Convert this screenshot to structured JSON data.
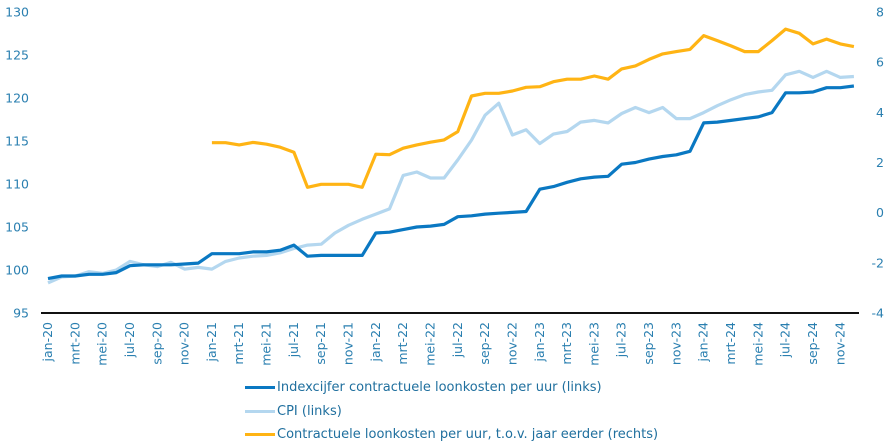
{
  "chart_data": {
    "type": "line",
    "title": "",
    "x": [
      "jan-20",
      "feb-20",
      "mrt-20",
      "apr-20",
      "mei-20",
      "jun-20",
      "jul-20",
      "aug-20",
      "sep-20",
      "okt-20",
      "nov-20",
      "dec-20",
      "jan-21",
      "feb-21",
      "mrt-21",
      "apr-21",
      "mei-21",
      "jun-21",
      "jul-21",
      "aug-21",
      "sep-21",
      "okt-21",
      "nov-21",
      "dec-21",
      "jan-22",
      "feb-22",
      "mrt-22",
      "apr-22",
      "mei-22",
      "jun-22",
      "jul-22",
      "aug-22",
      "sep-22",
      "okt-22",
      "nov-22",
      "dec-22",
      "jan-23",
      "feb-23",
      "mrt-23",
      "apr-23",
      "mei-23",
      "jun-23",
      "jul-23",
      "aug-23",
      "sep-23",
      "okt-23",
      "nov-23",
      "dec-23",
      "jan-24",
      "feb-24",
      "mrt-24",
      "apr-24",
      "mei-24",
      "jun-24",
      "jul-24",
      "aug-24",
      "sep-24",
      "okt-24",
      "nov-24",
      "dec-24"
    ],
    "x_tick_labels": [
      "jan-20",
      "mrt-20",
      "mei-20",
      "jul-20",
      "sep-20",
      "nov-20",
      "jan-21",
      "mrt-21",
      "mei-21",
      "jul-21",
      "sep-21",
      "nov-21",
      "jan-22",
      "mrt-22",
      "mei-22",
      "jul-22",
      "sep-22",
      "nov-22",
      "jan-23",
      "mrt-23",
      "mei-23",
      "jul-23",
      "sep-23",
      "nov-23",
      "jan-24",
      "mrt-24",
      "mei-24",
      "jul-24",
      "sep-24",
      "nov-24"
    ],
    "y_left": {
      "range": [
        95,
        130
      ],
      "ticks": [
        95,
        100,
        105,
        110,
        115,
        120,
        125,
        130
      ]
    },
    "y_right": {
      "range": [
        -4,
        8
      ],
      "ticks": [
        -4,
        -2,
        0,
        2,
        4,
        6,
        8
      ]
    },
    "grid": false,
    "legend_position": "bottom",
    "series": [
      {
        "name": "Indexcijfer contractuele loonkosten per uur (links)",
        "axis": "left",
        "color": "#0a78c2",
        "values": [
          99.0,
          99.3,
          99.3,
          99.5,
          99.5,
          99.7,
          100.5,
          100.6,
          100.6,
          100.6,
          100.7,
          100.8,
          101.9,
          101.9,
          101.9,
          102.1,
          102.1,
          102.3,
          102.9,
          101.6,
          101.7,
          101.7,
          101.7,
          101.7,
          104.3,
          104.4,
          104.7,
          105.0,
          105.1,
          105.3,
          106.2,
          106.3,
          106.5,
          106.6,
          106.7,
          106.8,
          109.4,
          109.7,
          110.2,
          110.6,
          110.8,
          110.9,
          112.3,
          112.5,
          112.9,
          113.2,
          113.4,
          113.8,
          117.1,
          117.2,
          117.4,
          117.6,
          117.8,
          118.3,
          120.6,
          120.6,
          120.7,
          121.2,
          121.2,
          121.4
        ]
      },
      {
        "name": "CPI (links)",
        "axis": "left",
        "color": "#b4d7ef",
        "values": [
          98.5,
          99.2,
          99.3,
          99.8,
          99.6,
          100.0,
          101.0,
          100.6,
          100.4,
          100.9,
          100.1,
          100.3,
          100.1,
          101.0,
          101.4,
          101.6,
          101.7,
          102.0,
          102.5,
          102.9,
          103.0,
          104.3,
          105.2,
          105.9,
          106.5,
          107.1,
          111.0,
          111.4,
          110.7,
          110.7,
          112.8,
          115.1,
          118.0,
          119.4,
          115.7,
          116.3,
          114.7,
          115.8,
          116.1,
          117.2,
          117.4,
          117.1,
          118.2,
          118.9,
          118.3,
          118.9,
          117.6,
          117.6,
          118.3,
          119.1,
          119.8,
          120.4,
          120.7,
          120.9,
          122.7,
          123.1,
          122.4,
          123.1,
          122.4,
          122.5
        ]
      },
      {
        "name": "Contractuele loonkosten per uur, t.o.v. jaar eerder (rechts)",
        "axis": "right",
        "color": "#ffb414",
        "values": [
          null,
          null,
          null,
          null,
          null,
          null,
          null,
          null,
          null,
          null,
          null,
          null,
          2.79,
          2.79,
          2.7,
          2.8,
          2.73,
          2.61,
          2.41,
          1.01,
          1.13,
          1.13,
          1.13,
          1.01,
          2.33,
          2.31,
          2.57,
          2.7,
          2.81,
          2.9,
          3.23,
          4.65,
          4.76,
          4.76,
          4.85,
          5.0,
          5.02,
          5.22,
          5.32,
          5.32,
          5.45,
          5.32,
          5.73,
          5.85,
          6.11,
          6.33,
          6.42,
          6.51,
          7.06,
          6.86,
          6.65,
          6.42,
          6.42,
          6.86,
          7.32,
          7.15,
          6.73,
          6.92,
          6.73,
          6.62
        ]
      }
    ]
  },
  "legend": {
    "items": [
      "Indexcijfer contractuele loonkosten per uur (links)",
      "CPI (links)",
      "Contractuele loonkosten per uur, t.o.v. jaar eerder (rechts)"
    ]
  }
}
